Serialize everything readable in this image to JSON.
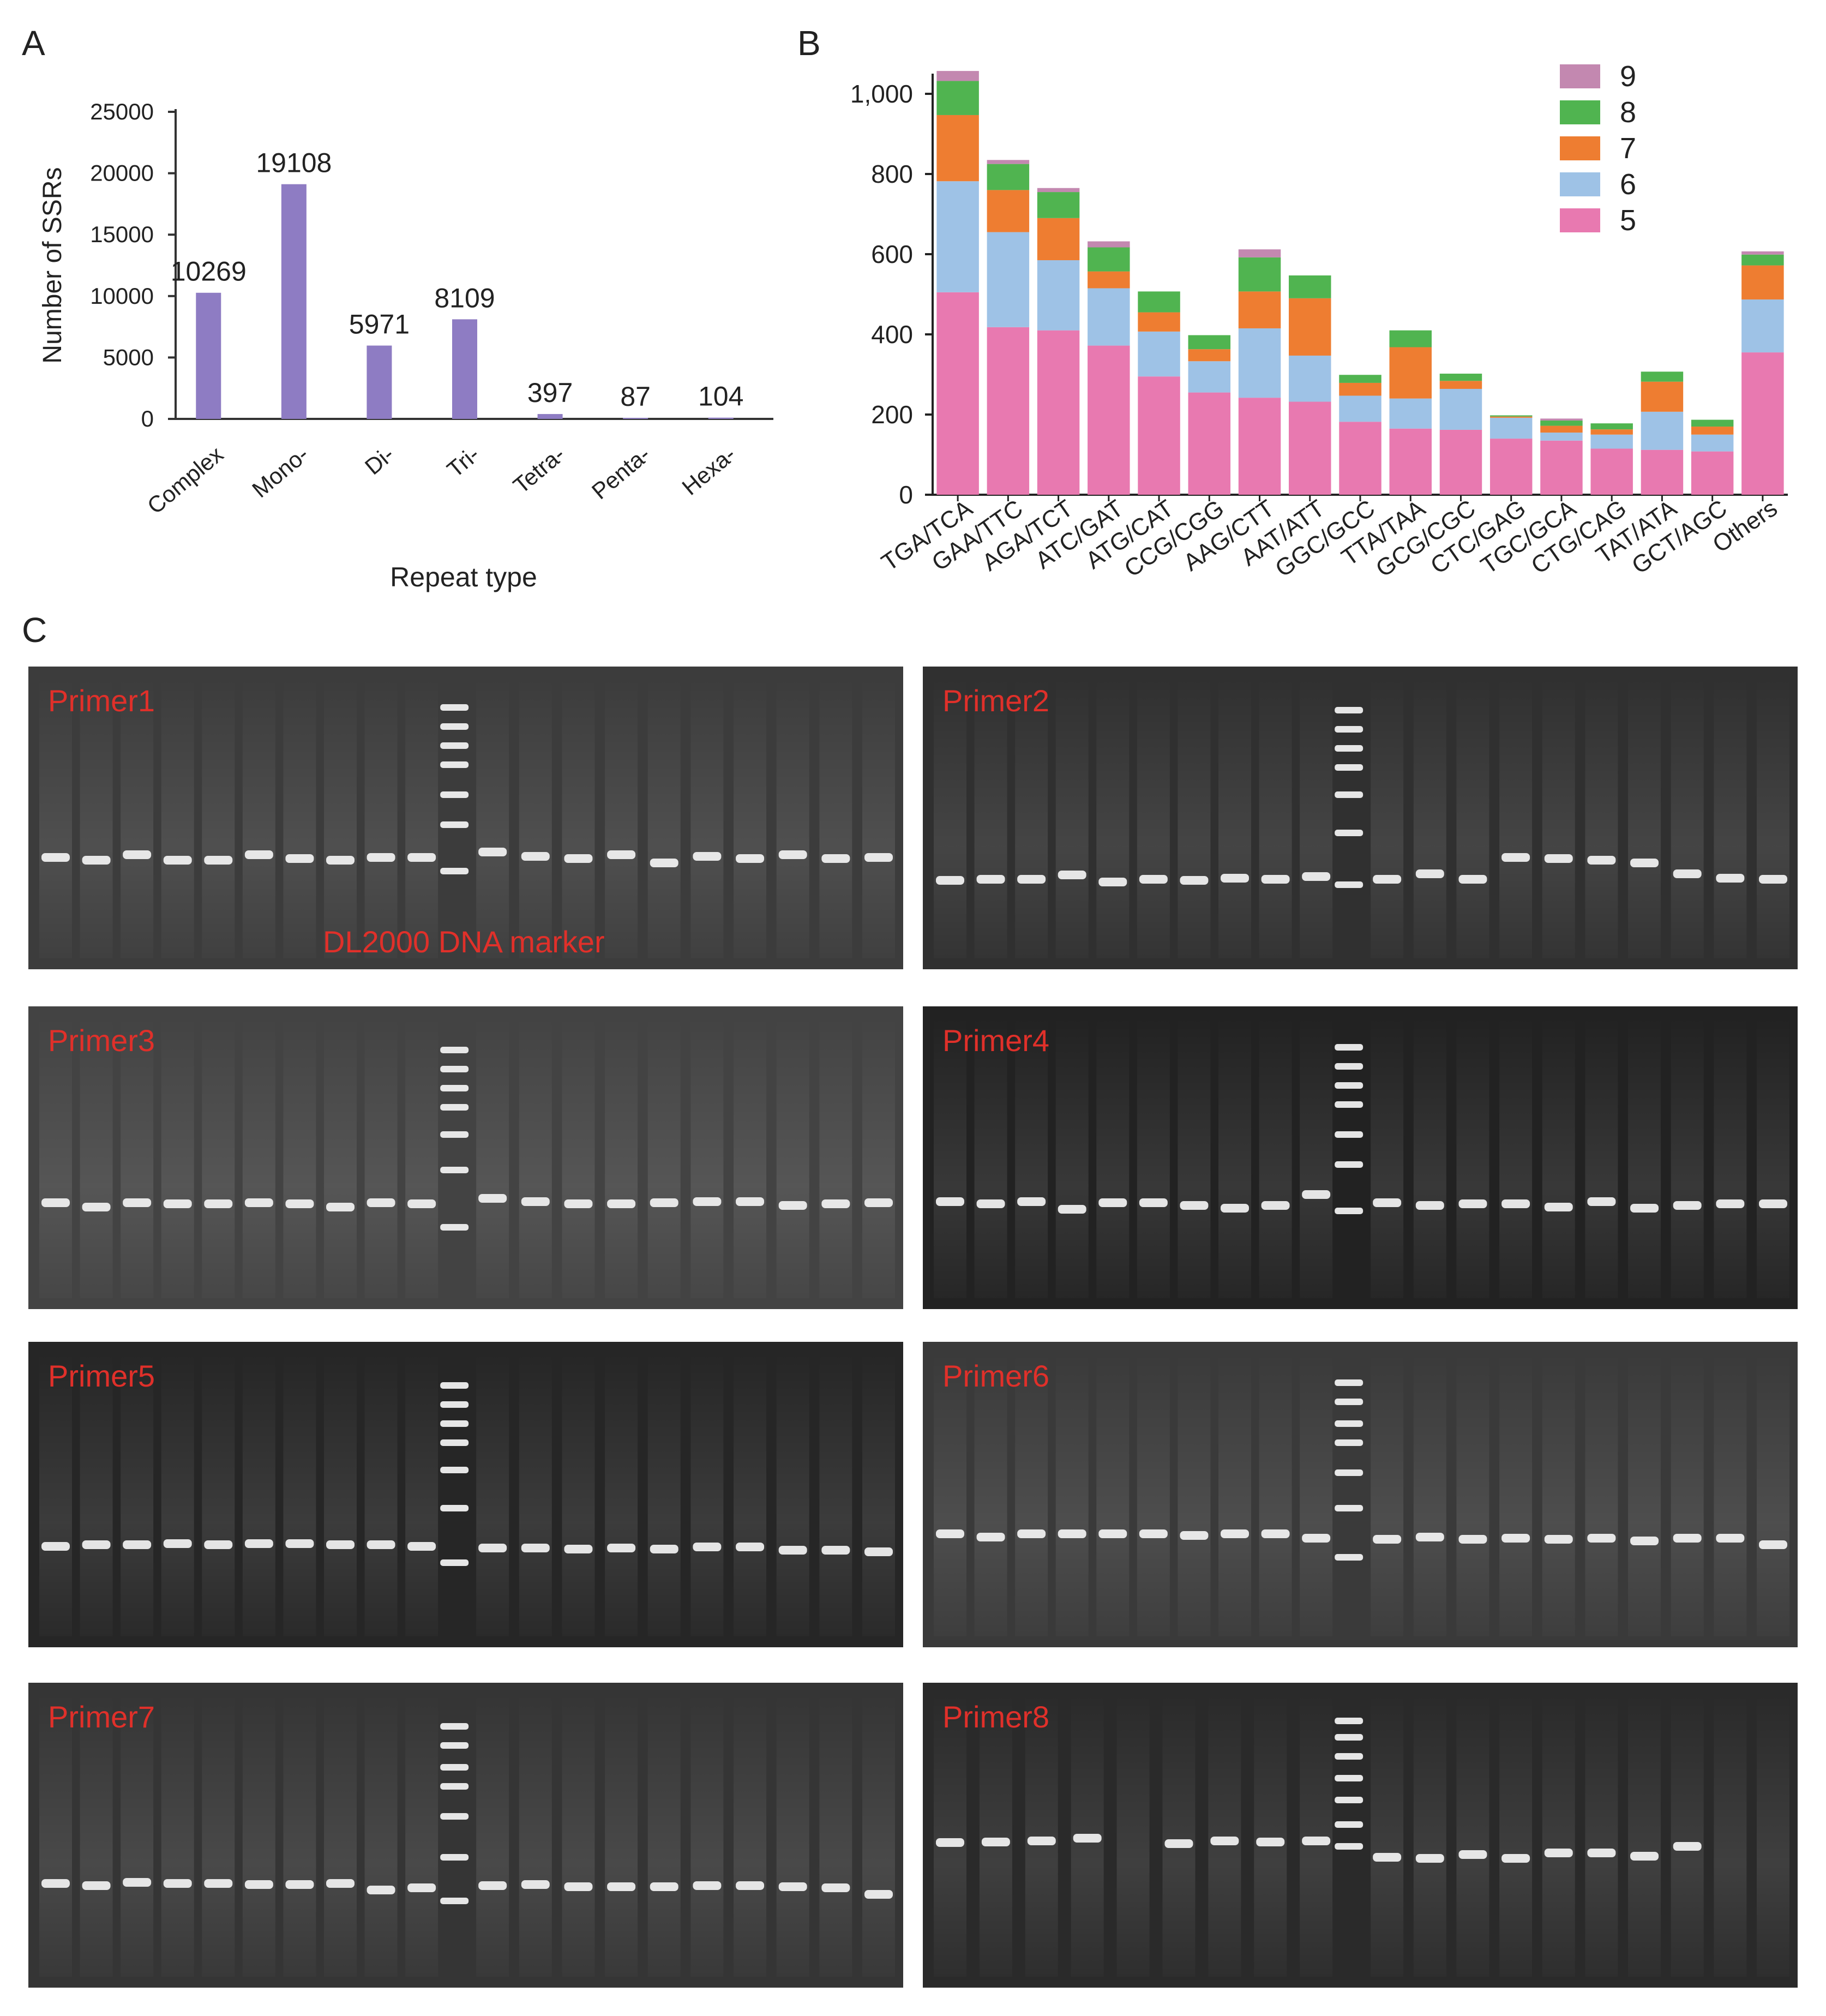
{
  "panels": {
    "a": "A",
    "b": "B",
    "c": "C"
  },
  "chart_data": [
    {
      "type": "bar",
      "title": "",
      "xlabel": "Repeat type",
      "ylabel": "Number of SSRs",
      "categories": [
        "Complex",
        "Mono-",
        "Di-",
        "Tri-",
        "Tetra-",
        "Penta-",
        "Hexa-"
      ],
      "values": [
        10269,
        19108,
        5971,
        8109,
        397,
        87,
        104
      ],
      "value_labels": [
        "10269",
        "19108",
        "5971",
        "8109",
        "397",
        "87",
        "104"
      ],
      "yticks": [
        0,
        5000,
        10000,
        15000,
        20000,
        25000
      ],
      "ytick_labels": [
        "0",
        "5000",
        "10000",
        "15000",
        "20000",
        "25000"
      ],
      "ylim": [
        0,
        25000
      ],
      "bar_color": "#8e7cc3"
    },
    {
      "type": "bar",
      "stacked": true,
      "title": "",
      "xlabel": "",
      "ylabel": "",
      "categories": [
        "TGA/TCA",
        "GAA/TTC",
        "AGA/TCT",
        "ATC/GAT",
        "ATG/CAT",
        "CCG/CGG",
        "AAG/CTT",
        "AAT/ATT",
        "GGC/GCC",
        "TTA/TAA",
        "GCG/CGC",
        "CTC/GAG",
        "TGC/GCA",
        "CTG/CAG",
        "TAT/ATA",
        "GCT/AGC",
        "Others"
      ],
      "series": [
        {
          "name": "5",
          "color": "#e879b0",
          "values": [
            505,
            418,
            410,
            372,
            295,
            255,
            242,
            232,
            182,
            165,
            162,
            140,
            135,
            115,
            112,
            108,
            355
          ]
        },
        {
          "name": "6",
          "color": "#9ec2e6",
          "values": [
            277,
            237,
            175,
            143,
            112,
            78,
            173,
            115,
            65,
            75,
            102,
            52,
            20,
            35,
            95,
            42,
            132
          ]
        },
        {
          "name": "7",
          "color": "#ee7d31",
          "values": [
            165,
            105,
            105,
            42,
            48,
            30,
            92,
            143,
            32,
            128,
            20,
            3,
            17,
            13,
            75,
            20,
            85
          ]
        },
        {
          "name": "8",
          "color": "#50b450",
          "values": [
            85,
            65,
            65,
            60,
            52,
            35,
            85,
            57,
            20,
            42,
            18,
            3,
            13,
            15,
            25,
            17,
            27
          ]
        },
        {
          "name": "9",
          "color": "#c388b0",
          "values": [
            25,
            10,
            10,
            15,
            0,
            0,
            20,
            0,
            0,
            0,
            0,
            0,
            5,
            0,
            0,
            0,
            8
          ]
        }
      ],
      "legend_order": [
        "9",
        "8",
        "7",
        "6",
        "5"
      ],
      "legend_position": "top-right",
      "yticks": [
        0,
        200,
        400,
        600,
        800,
        1000
      ],
      "ytick_labels": [
        "0",
        "200",
        "400",
        "600",
        "800",
        "1,000"
      ],
      "ylim": [
        0,
        1000
      ]
    }
  ],
  "gels": [
    {
      "label": "Primer1",
      "bg": "#3c3c3c"
    },
    {
      "label": "Primer2",
      "bg": "#303030"
    },
    {
      "label": "Primer3",
      "bg": "#434343"
    },
    {
      "label": "Primer4",
      "bg": "#222222"
    },
    {
      "label": "Primer5",
      "bg": "#262626"
    },
    {
      "label": "Primer6",
      "bg": "#3a3a3a"
    },
    {
      "label": "Primer7",
      "bg": "#353535"
    },
    {
      "label": "Primer8",
      "bg": "#2a2a2a"
    }
  ],
  "marker_label": "DL2000 DNA marker"
}
